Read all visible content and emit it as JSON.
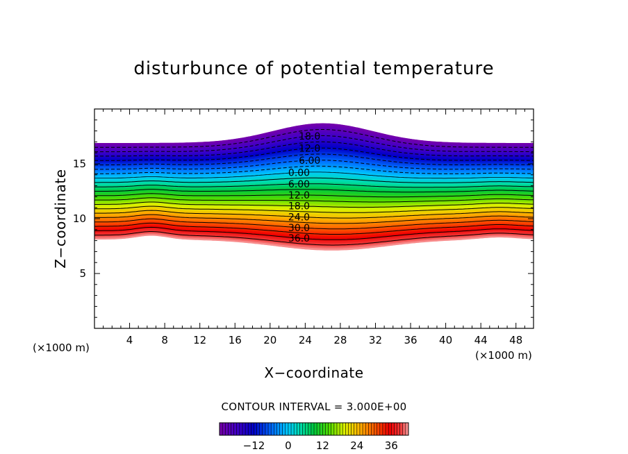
{
  "chart_data": {
    "type": "contour",
    "title": "disturbunce of potential temperature",
    "xlabel": "X−coordinate",
    "ylabel": "Z−coordinate",
    "x_unit": "(×1000 m)",
    "y_unit": "(×1000 m)",
    "xlim": [
      0,
      50
    ],
    "ylim": [
      0,
      20
    ],
    "x_ticks": [
      4,
      8,
      12,
      16,
      20,
      24,
      28,
      32,
      36,
      40,
      44,
      48
    ],
    "y_ticks": [
      5,
      10,
      15
    ],
    "contour_interval_text": "CONTOUR INTERVAL = 3.000E+00",
    "contour_interval": 3.0,
    "value_range": [
      -24,
      42
    ],
    "contour_labels": [
      "18.0",
      "12.0",
      "6.00",
      "0.00",
      "6.00",
      "12.0",
      "18.0",
      "24.0",
      "30.0",
      "36.0"
    ],
    "colorbar": {
      "ticks": [
        -12,
        0,
        12,
        24,
        36
      ],
      "tick_labels": [
        "−12",
        "0",
        "12",
        "24",
        "36"
      ],
      "min": -24,
      "max": 42
    },
    "field_description": {
      "top_boundary_z_edges": 16.9,
      "top_boundary_z_peak": 18.7,
      "top_peak_x": 26,
      "bottom_boundary_z_edges": 8.1,
      "bottom_boundary_z_center": 7.1
    }
  }
}
